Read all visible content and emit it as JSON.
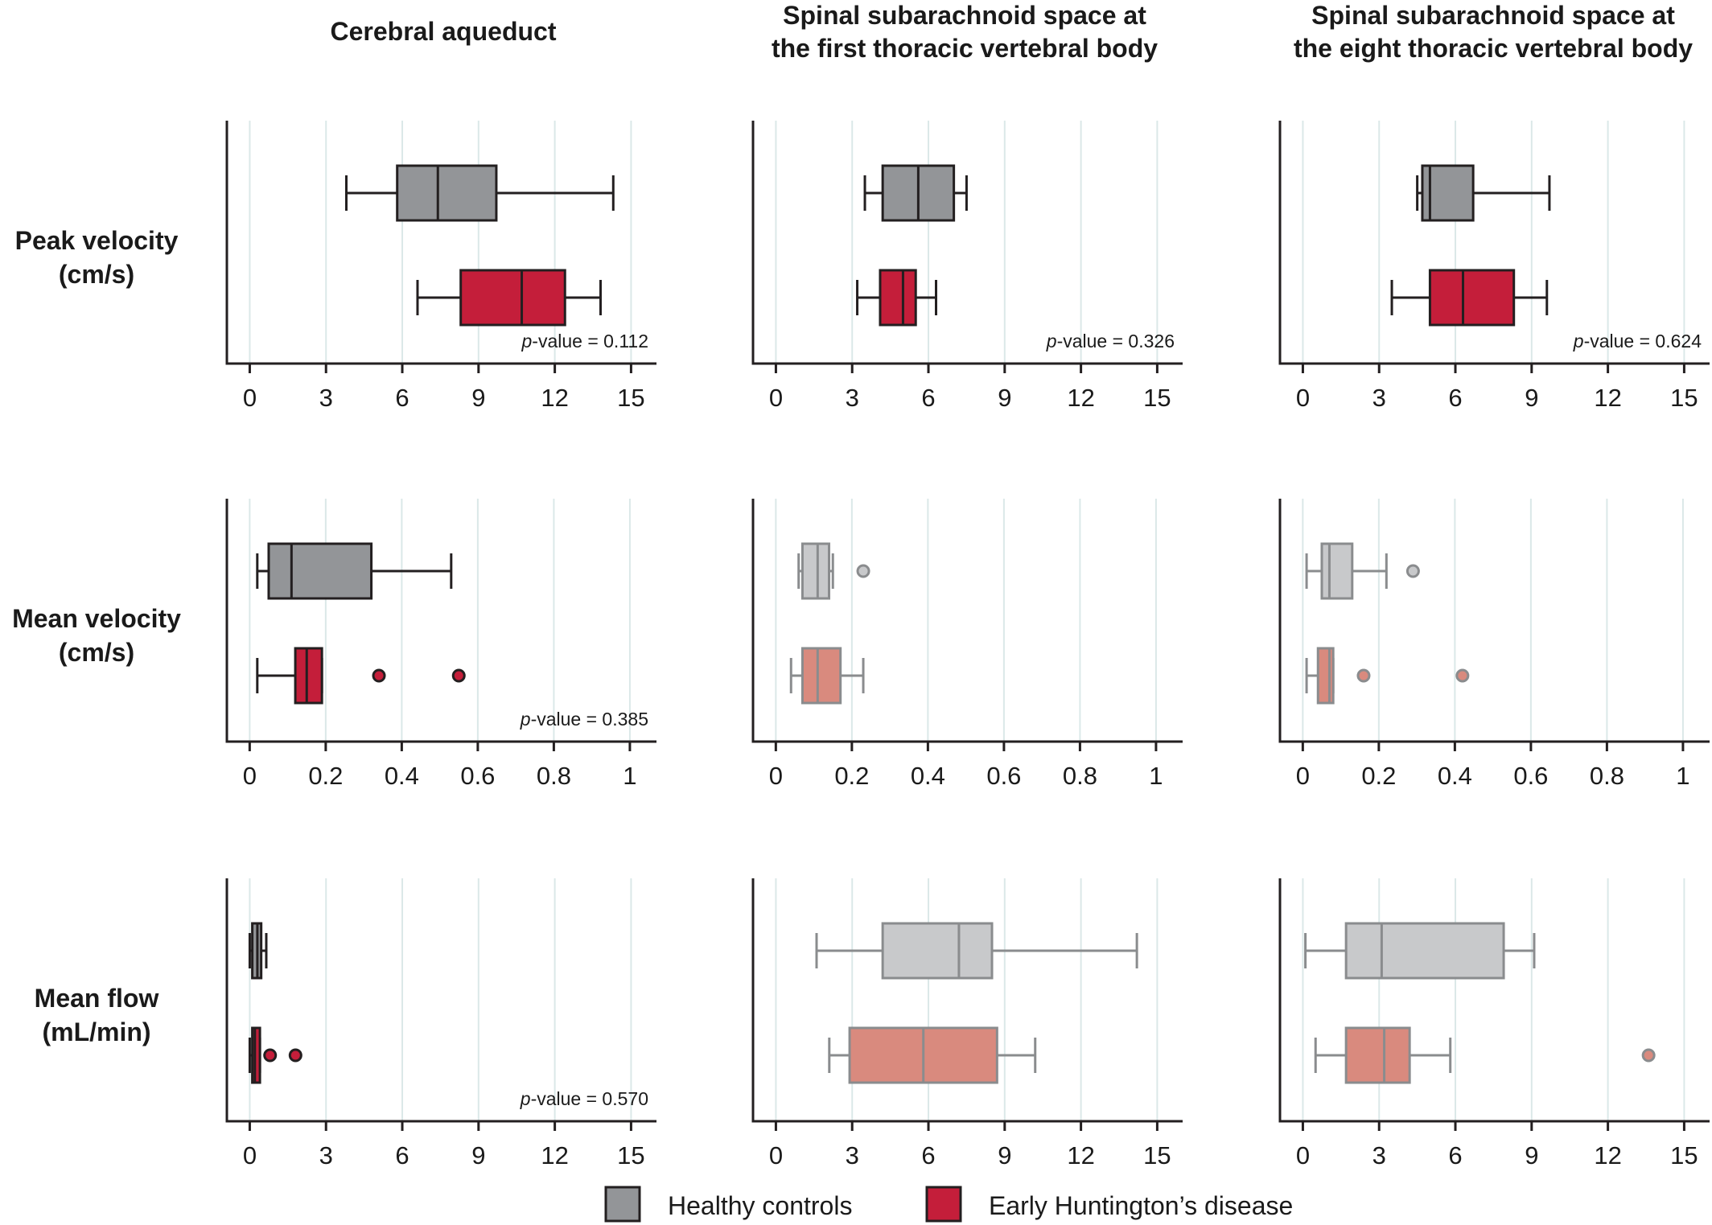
{
  "colors": {
    "healthy": "#939598",
    "huntington": "#c41e3a",
    "healthy_faded": "#c8c9cb",
    "huntington_faded": "#d98a7e",
    "stroke": "#231f20",
    "stroke_faded": "#8a8c8e",
    "grid": "#dbe8e8"
  },
  "columns": [
    {
      "title_lines": [
        "Cerebral aqueduct"
      ]
    },
    {
      "title_lines": [
        "Spinal subarachnoid space at",
        "the first thoracic vertebral body"
      ]
    },
    {
      "title_lines": [
        "Spinal subarachnoid space at",
        "the eight thoracic vertebral body"
      ]
    }
  ],
  "rows": [
    {
      "label_lines": [
        "Peak velocity",
        "(cm/s)"
      ]
    },
    {
      "label_lines": [
        "Mean velocity",
        "(cm/s)"
      ]
    },
    {
      "label_lines": [
        "Mean flow",
        "(mL/min)"
      ]
    }
  ],
  "legend": [
    {
      "label": "Healthy controls",
      "color_key": "healthy"
    },
    {
      "label": "Early Huntington’s disease",
      "color_key": "huntington"
    }
  ],
  "chart_data": [
    {
      "type": "boxplot",
      "row": 0,
      "col": 0,
      "xlim": [
        -0.9,
        16
      ],
      "ticks": [
        0,
        3,
        6,
        9,
        12,
        15
      ],
      "tick_labels": [
        "0",
        "3",
        "6",
        "9",
        "12",
        "15"
      ],
      "p_label_prefix": "p",
      "p_label_suffix": "-value = 0.112",
      "faded": false,
      "boxes": [
        {
          "group": "healthy",
          "whisker_low": 3.8,
          "q1": 5.8,
          "median": 7.4,
          "q3": 9.7,
          "whisker_high": 14.3,
          "outliers": []
        },
        {
          "group": "huntington",
          "whisker_low": 6.6,
          "q1": 8.3,
          "median": 10.7,
          "q3": 12.4,
          "whisker_high": 13.8,
          "outliers": []
        }
      ]
    },
    {
      "type": "boxplot",
      "row": 0,
      "col": 1,
      "xlim": [
        -0.9,
        16
      ],
      "ticks": [
        0,
        3,
        6,
        9,
        12,
        15
      ],
      "tick_labels": [
        "0",
        "3",
        "6",
        "9",
        "12",
        "15"
      ],
      "p_label_prefix": "p",
      "p_label_suffix": "-value = 0.326",
      "faded": false,
      "boxes": [
        {
          "group": "healthy",
          "whisker_low": 3.5,
          "q1": 4.2,
          "median": 5.6,
          "q3": 7.0,
          "whisker_high": 7.5,
          "outliers": []
        },
        {
          "group": "huntington",
          "whisker_low": 3.2,
          "q1": 4.1,
          "median": 5.0,
          "q3": 5.5,
          "whisker_high": 6.3,
          "outliers": []
        }
      ]
    },
    {
      "type": "boxplot",
      "row": 0,
      "col": 2,
      "xlim": [
        -0.9,
        16
      ],
      "ticks": [
        0,
        3,
        6,
        9,
        12,
        15
      ],
      "tick_labels": [
        "0",
        "3",
        "6",
        "9",
        "12",
        "15"
      ],
      "p_label_prefix": "p",
      "p_label_suffix": "-value = 0.624",
      "faded": false,
      "boxes": [
        {
          "group": "healthy",
          "whisker_low": 4.5,
          "q1": 4.7,
          "median": 5.0,
          "q3": 6.7,
          "whisker_high": 9.7,
          "outliers": []
        },
        {
          "group": "huntington",
          "whisker_low": 3.5,
          "q1": 5.0,
          "median": 6.3,
          "q3": 8.3,
          "whisker_high": 9.6,
          "outliers": []
        }
      ]
    },
    {
      "type": "boxplot",
      "row": 1,
      "col": 0,
      "xlim": [
        -0.06,
        1.07
      ],
      "ticks": [
        0,
        0.2,
        0.4,
        0.6,
        0.8,
        1
      ],
      "tick_labels": [
        "0",
        "0.2",
        "0.4",
        "0.6",
        "0.8",
        "1"
      ],
      "p_label_prefix": "p",
      "p_label_suffix": "-value = 0.385",
      "faded": false,
      "boxes": [
        {
          "group": "healthy",
          "whisker_low": 0.02,
          "q1": 0.05,
          "median": 0.11,
          "q3": 0.32,
          "whisker_high": 0.53,
          "outliers": []
        },
        {
          "group": "huntington",
          "whisker_low": 0.02,
          "q1": 0.12,
          "median": 0.15,
          "q3": 0.19,
          "whisker_high": 0.19,
          "outliers": [
            0.34,
            0.55
          ]
        }
      ]
    },
    {
      "type": "boxplot",
      "row": 1,
      "col": 1,
      "xlim": [
        -0.06,
        1.07
      ],
      "ticks": [
        0,
        0.2,
        0.4,
        0.6,
        0.8,
        1
      ],
      "tick_labels": [
        "0",
        "0.2",
        "0.4",
        "0.6",
        "0.8",
        "1"
      ],
      "p_label_prefix": "",
      "p_label_suffix": "",
      "faded": true,
      "boxes": [
        {
          "group": "healthy",
          "whisker_low": 0.06,
          "q1": 0.07,
          "median": 0.11,
          "q3": 0.14,
          "whisker_high": 0.15,
          "outliers": [
            0.23
          ]
        },
        {
          "group": "huntington",
          "whisker_low": 0.04,
          "q1": 0.07,
          "median": 0.11,
          "q3": 0.17,
          "whisker_high": 0.23,
          "outliers": []
        }
      ]
    },
    {
      "type": "boxplot",
      "row": 1,
      "col": 2,
      "xlim": [
        -0.06,
        1.07
      ],
      "ticks": [
        0,
        0.2,
        0.4,
        0.6,
        0.8,
        1
      ],
      "tick_labels": [
        "0",
        "0.2",
        "0.4",
        "0.6",
        "0.8",
        "1"
      ],
      "p_label_prefix": "",
      "p_label_suffix": "",
      "faded": true,
      "boxes": [
        {
          "group": "healthy",
          "whisker_low": 0.01,
          "q1": 0.05,
          "median": 0.07,
          "q3": 0.13,
          "whisker_high": 0.22,
          "outliers": [
            0.29
          ]
        },
        {
          "group": "huntington",
          "whisker_low": 0.01,
          "q1": 0.04,
          "median": 0.07,
          "q3": 0.08,
          "whisker_high": 0.08,
          "outliers": [
            0.16,
            0.42
          ]
        }
      ]
    },
    {
      "type": "boxplot",
      "row": 2,
      "col": 0,
      "xlim": [
        -0.9,
        16
      ],
      "ticks": [
        0,
        3,
        6,
        9,
        12,
        15
      ],
      "tick_labels": [
        "0",
        "3",
        "6",
        "9",
        "12",
        "15"
      ],
      "p_label_prefix": "p",
      "p_label_suffix": "-value = 0.570",
      "faded": false,
      "boxes": [
        {
          "group": "healthy",
          "whisker_low": 0.0,
          "q1": 0.1,
          "median": 0.3,
          "q3": 0.45,
          "whisker_high": 0.65,
          "outliers": []
        },
        {
          "group": "huntington",
          "whisker_low": 0.0,
          "q1": 0.1,
          "median": 0.2,
          "q3": 0.4,
          "whisker_high": 0.4,
          "outliers": [
            0.8,
            1.8
          ]
        }
      ]
    },
    {
      "type": "boxplot",
      "row": 2,
      "col": 1,
      "xlim": [
        -0.9,
        16
      ],
      "ticks": [
        0,
        3,
        6,
        9,
        12,
        15
      ],
      "tick_labels": [
        "0",
        "3",
        "6",
        "9",
        "12",
        "15"
      ],
      "p_label_prefix": "",
      "p_label_suffix": "",
      "faded": true,
      "boxes": [
        {
          "group": "healthy",
          "whisker_low": 1.6,
          "q1": 4.2,
          "median": 7.2,
          "q3": 8.5,
          "whisker_high": 14.2,
          "outliers": []
        },
        {
          "group": "huntington",
          "whisker_low": 2.1,
          "q1": 2.9,
          "median": 5.8,
          "q3": 8.7,
          "whisker_high": 10.2,
          "outliers": []
        }
      ]
    },
    {
      "type": "boxplot",
      "row": 2,
      "col": 2,
      "xlim": [
        -0.9,
        16
      ],
      "ticks": [
        0,
        3,
        6,
        9,
        12,
        15
      ],
      "tick_labels": [
        "0",
        "3",
        "6",
        "9",
        "12",
        "15"
      ],
      "p_label_prefix": "",
      "p_label_suffix": "",
      "faded": true,
      "boxes": [
        {
          "group": "healthy",
          "whisker_low": 0.1,
          "q1": 1.7,
          "median": 3.1,
          "q3": 7.9,
          "whisker_high": 9.1,
          "outliers": []
        },
        {
          "group": "huntington",
          "whisker_low": 0.5,
          "q1": 1.7,
          "median": 3.2,
          "q3": 4.2,
          "whisker_high": 5.8,
          "outliers": [
            13.6
          ]
        }
      ]
    }
  ]
}
